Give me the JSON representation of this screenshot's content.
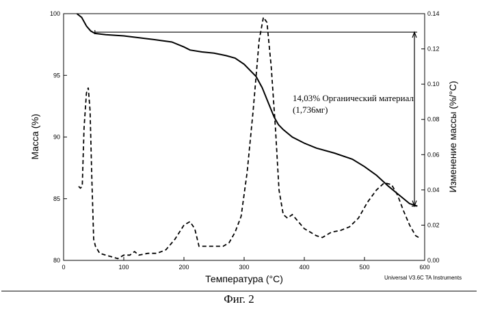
{
  "figure_caption": "Фиг. 2",
  "instrument_label": "Universal V3.6C TA Instruments",
  "colors": {
    "line": "#000000",
    "background": "#ffffff"
  },
  "chart_data": {
    "type": "line",
    "title": "",
    "xlabel": "Температура (°C)",
    "ylabel": "Масса (%)",
    "y2label": "Изменение массы (%/°C)",
    "xlim": [
      0,
      600
    ],
    "ylim": [
      80,
      100
    ],
    "y2lim": [
      0,
      0.14
    ],
    "xticks": [
      0,
      100,
      200,
      300,
      400,
      500,
      600
    ],
    "yticks": [
      80,
      85,
      90,
      95,
      100
    ],
    "y2ticks": [
      0.0,
      0.02,
      0.04,
      0.06,
      0.08,
      0.1,
      0.12,
      0.14
    ],
    "ytick_labels": [
      "80",
      "85",
      "90",
      "95",
      "100"
    ],
    "y2tick_labels": [
      "0.00",
      "0.02",
      "0.04",
      "0.06",
      "0.08",
      "0.10",
      "0.12",
      "0.14"
    ],
    "grid": false,
    "series": [
      {
        "name": "Масса (%)",
        "axis": "left",
        "style": "solid",
        "points": [
          [
            22,
            100.0
          ],
          [
            30,
            99.7
          ],
          [
            38,
            99.0
          ],
          [
            45,
            98.6
          ],
          [
            52,
            98.4
          ],
          [
            70,
            98.3
          ],
          [
            100,
            98.2
          ],
          [
            150,
            97.9
          ],
          [
            180,
            97.7
          ],
          [
            200,
            97.3
          ],
          [
            210,
            97.05
          ],
          [
            230,
            96.9
          ],
          [
            250,
            96.8
          ],
          [
            270,
            96.6
          ],
          [
            285,
            96.4
          ],
          [
            300,
            95.9
          ],
          [
            320,
            94.9
          ],
          [
            330,
            94.0
          ],
          [
            340,
            92.8
          ],
          [
            350,
            91.6
          ],
          [
            357,
            91.0
          ],
          [
            365,
            90.6
          ],
          [
            380,
            90.0
          ],
          [
            400,
            89.5
          ],
          [
            420,
            89.1
          ],
          [
            450,
            88.7
          ],
          [
            480,
            88.2
          ],
          [
            500,
            87.6
          ],
          [
            520,
            86.9
          ],
          [
            540,
            86.0
          ],
          [
            560,
            85.2
          ],
          [
            575,
            84.6
          ],
          [
            588,
            84.4
          ]
        ]
      },
      {
        "name": "Изменение массы (%/°C)",
        "axis": "right",
        "style": "dashed",
        "points": [
          [
            25,
            0.042
          ],
          [
            28,
            0.041
          ],
          [
            31,
            0.042
          ],
          [
            34,
            0.075
          ],
          [
            38,
            0.095
          ],
          [
            41,
            0.098
          ],
          [
            44,
            0.085
          ],
          [
            47,
            0.045
          ],
          [
            50,
            0.012
          ],
          [
            53,
            0.008
          ],
          [
            60,
            0.004
          ],
          [
            70,
            0.003
          ],
          [
            80,
            0.002
          ],
          [
            90,
            0.001
          ],
          [
            100,
            0.003
          ],
          [
            110,
            0.003
          ],
          [
            118,
            0.005
          ],
          [
            125,
            0.003
          ],
          [
            140,
            0.004
          ],
          [
            155,
            0.004
          ],
          [
            170,
            0.006
          ],
          [
            185,
            0.012
          ],
          [
            200,
            0.02
          ],
          [
            210,
            0.022
          ],
          [
            218,
            0.018
          ],
          [
            225,
            0.008
          ],
          [
            232,
            0.008
          ],
          [
            250,
            0.008
          ],
          [
            265,
            0.008
          ],
          [
            275,
            0.01
          ],
          [
            285,
            0.016
          ],
          [
            295,
            0.025
          ],
          [
            305,
            0.05
          ],
          [
            315,
            0.085
          ],
          [
            325,
            0.125
          ],
          [
            332,
            0.138
          ],
          [
            338,
            0.135
          ],
          [
            345,
            0.11
          ],
          [
            352,
            0.075
          ],
          [
            358,
            0.04
          ],
          [
            365,
            0.026
          ],
          [
            372,
            0.024
          ],
          [
            380,
            0.026
          ],
          [
            390,
            0.022
          ],
          [
            400,
            0.018
          ],
          [
            410,
            0.016
          ],
          [
            420,
            0.014
          ],
          [
            430,
            0.013
          ],
          [
            445,
            0.016
          ],
          [
            460,
            0.017
          ],
          [
            475,
            0.019
          ],
          [
            490,
            0.024
          ],
          [
            505,
            0.033
          ],
          [
            520,
            0.04
          ],
          [
            533,
            0.044
          ],
          [
            545,
            0.043
          ],
          [
            555,
            0.037
          ],
          [
            565,
            0.028
          ],
          [
            575,
            0.02
          ],
          [
            585,
            0.014
          ],
          [
            590,
            0.013
          ]
        ]
      }
    ],
    "annotations": [
      {
        "text": "14,03% Органический материал",
        "type": "label"
      },
      {
        "text": "(1,736мг)",
        "type": "label"
      },
      {
        "type": "span",
        "axis": "left",
        "from": 98.5,
        "to": 84.4,
        "at_x": 583,
        "baseline_from_x": 52
      }
    ]
  }
}
